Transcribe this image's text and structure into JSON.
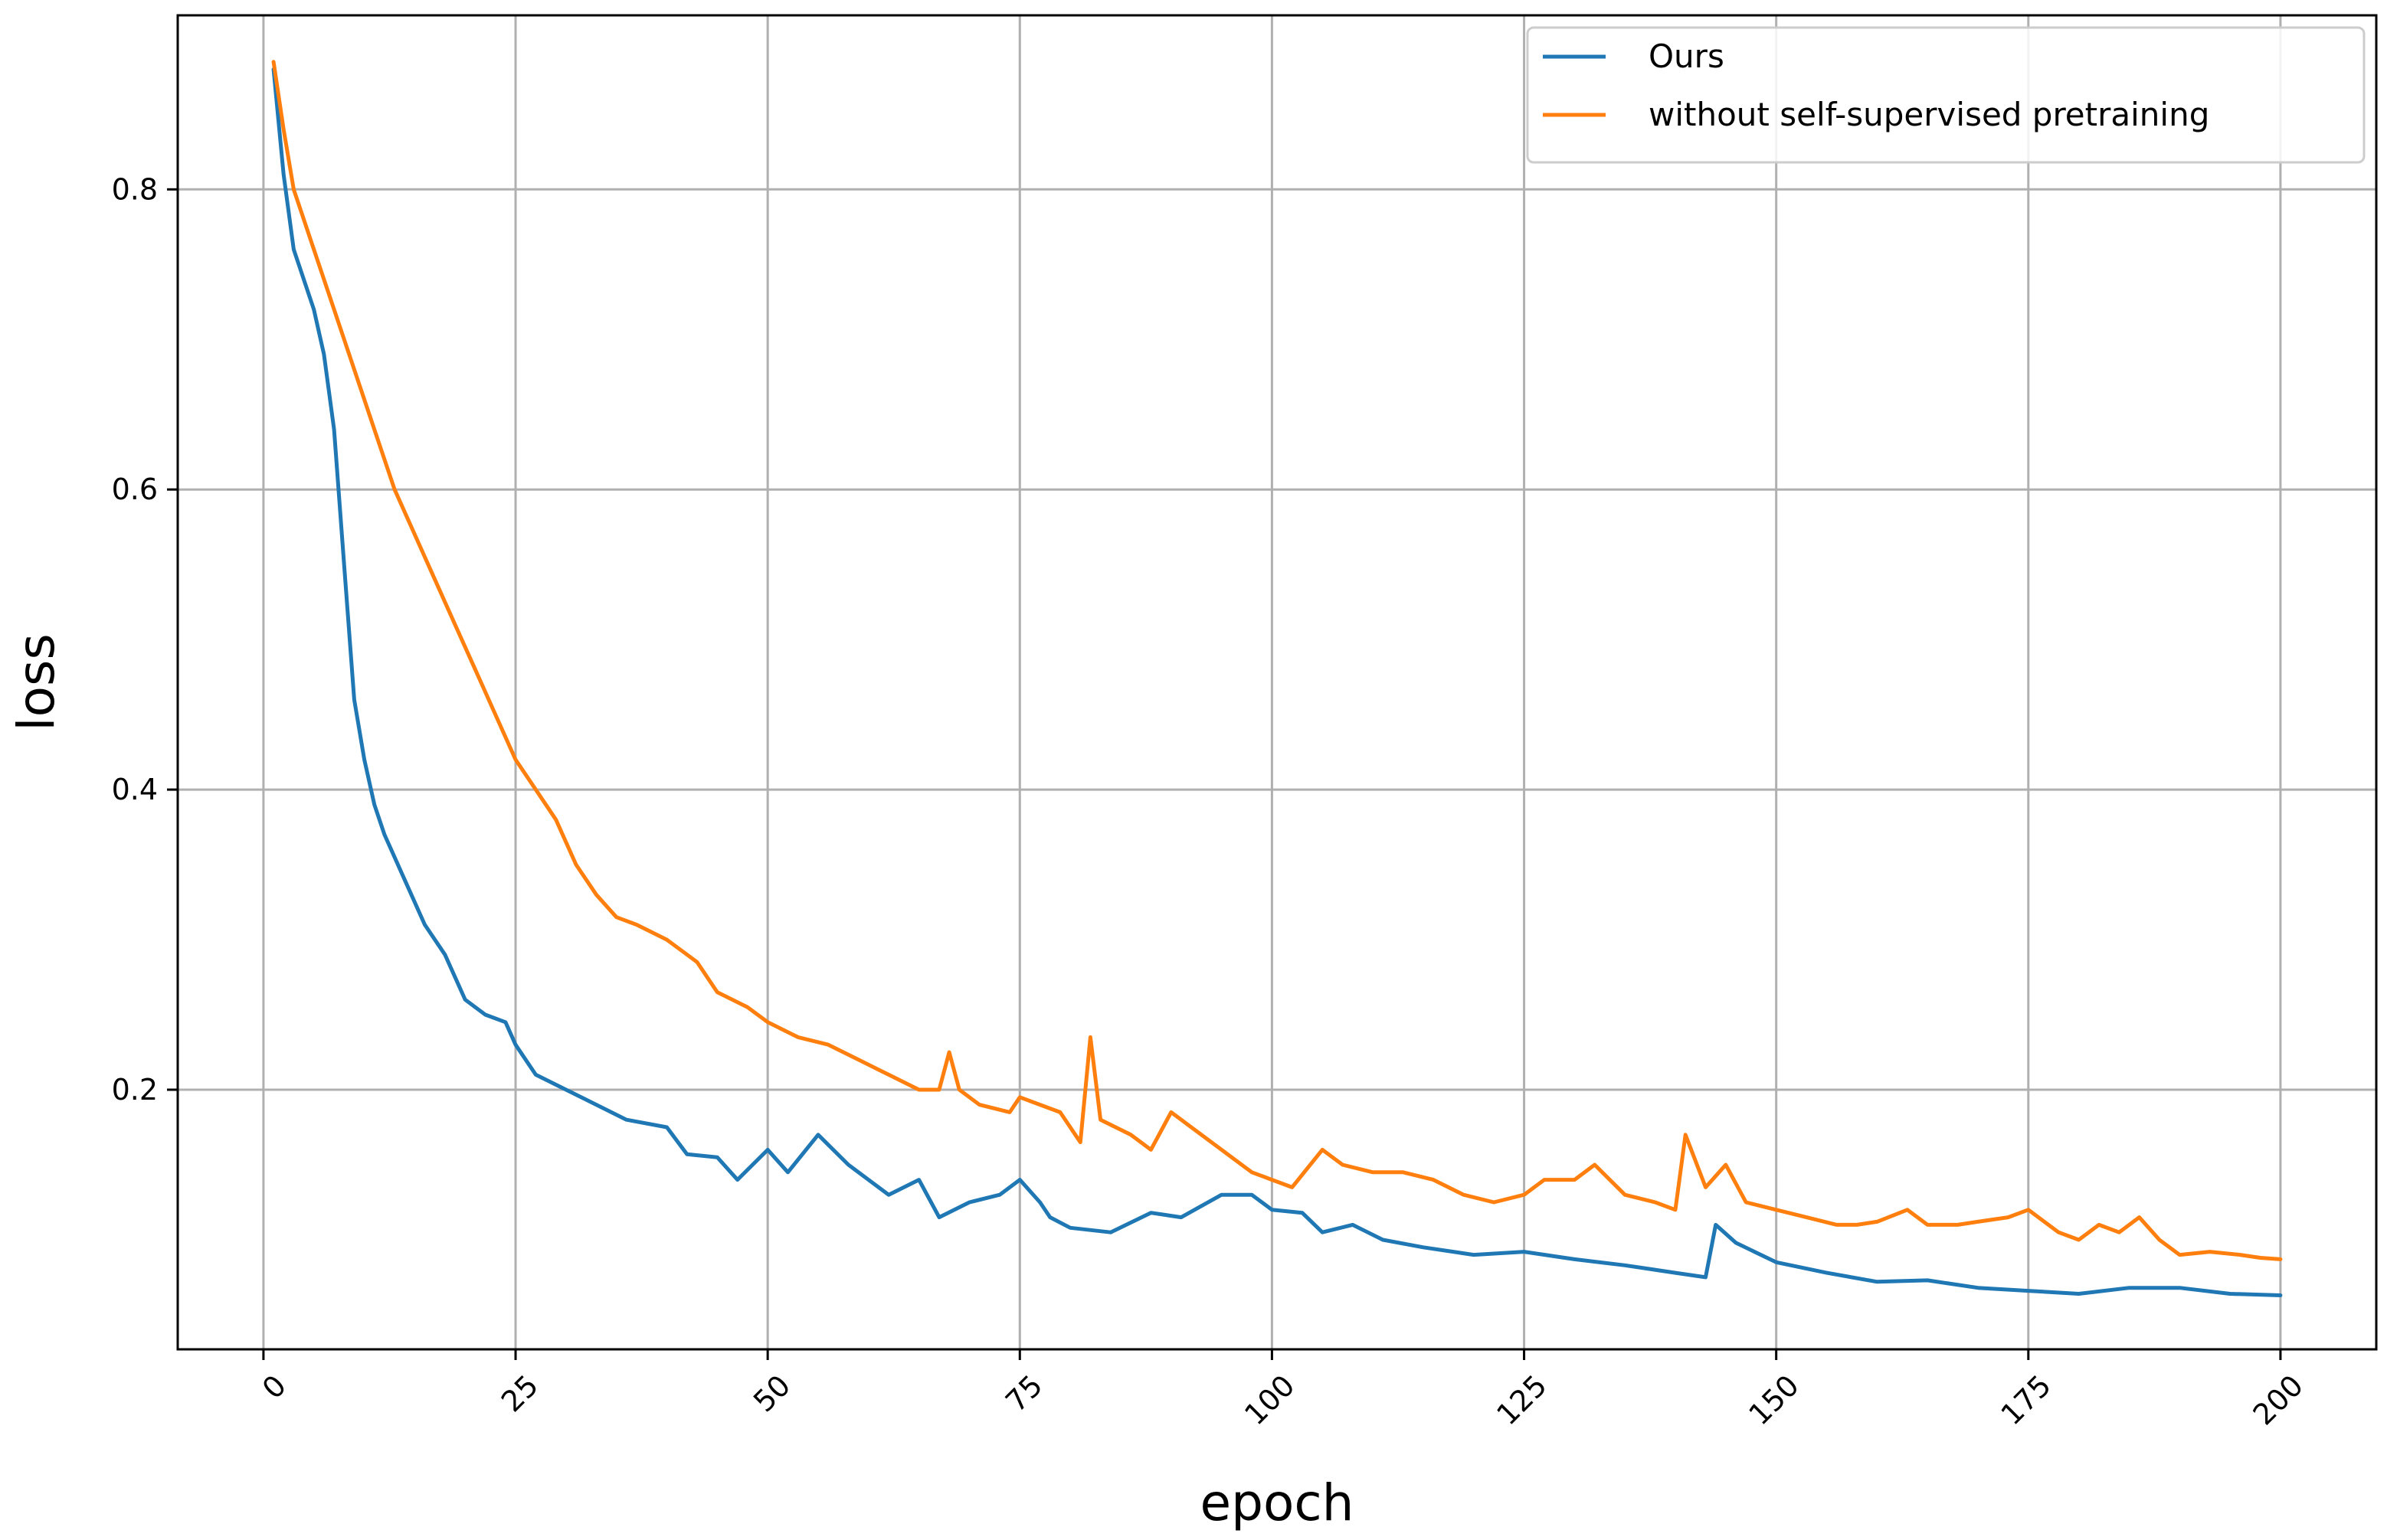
{
  "chart_data": {
    "type": "line",
    "title": "",
    "xlabel": "epoch",
    "ylabel": "loss",
    "xlim": [
      -8.5,
      209.5
    ],
    "ylim": [
      0.027,
      0.916
    ],
    "xticks": [
      0,
      25,
      50,
      75,
      100,
      125,
      150,
      175,
      200
    ],
    "yticks": [
      0.2,
      0.4,
      0.6,
      0.8
    ],
    "ytick_labels": [
      "0.2",
      "0.4",
      "0.6",
      "0.8"
    ],
    "xtick_rotation": 45,
    "grid": true,
    "legend_position": "upper right",
    "series": [
      {
        "name": "Ours",
        "color": "#1f77b4",
        "keypoints": [
          [
            1,
            0.88
          ],
          [
            2,
            0.81
          ],
          [
            3,
            0.76
          ],
          [
            5,
            0.72
          ],
          [
            6,
            0.69
          ],
          [
            7,
            0.64
          ],
          [
            8,
            0.55
          ],
          [
            9,
            0.46
          ],
          [
            10,
            0.42
          ],
          [
            11,
            0.39
          ],
          [
            12,
            0.37
          ],
          [
            14,
            0.34
          ],
          [
            16,
            0.31
          ],
          [
            18,
            0.29
          ],
          [
            20,
            0.26
          ],
          [
            22,
            0.25
          ],
          [
            24,
            0.245
          ],
          [
            25,
            0.23
          ],
          [
            27,
            0.21
          ],
          [
            30,
            0.2
          ],
          [
            33,
            0.19
          ],
          [
            36,
            0.18
          ],
          [
            40,
            0.175
          ],
          [
            42,
            0.157
          ],
          [
            45,
            0.155
          ],
          [
            47,
            0.14
          ],
          [
            50,
            0.16
          ],
          [
            52,
            0.145
          ],
          [
            55,
            0.17
          ],
          [
            58,
            0.15
          ],
          [
            62,
            0.13
          ],
          [
            65,
            0.14
          ],
          [
            67,
            0.115
          ],
          [
            70,
            0.125
          ],
          [
            73,
            0.13
          ],
          [
            75,
            0.14
          ],
          [
            77,
            0.125
          ],
          [
            78,
            0.115
          ],
          [
            80,
            0.108
          ],
          [
            84,
            0.105
          ],
          [
            88,
            0.118
          ],
          [
            91,
            0.115
          ],
          [
            95,
            0.13
          ],
          [
            98,
            0.13
          ],
          [
            100,
            0.12
          ],
          [
            103,
            0.118
          ],
          [
            105,
            0.105
          ],
          [
            108,
            0.11
          ],
          [
            111,
            0.1
          ],
          [
            115,
            0.095
          ],
          [
            120,
            0.09
          ],
          [
            125,
            0.092
          ],
          [
            130,
            0.087
          ],
          [
            135,
            0.083
          ],
          [
            140,
            0.078
          ],
          [
            143,
            0.075
          ],
          [
            144,
            0.11
          ],
          [
            146,
            0.098
          ],
          [
            150,
            0.085
          ],
          [
            155,
            0.078
          ],
          [
            160,
            0.072
          ],
          [
            165,
            0.073
          ],
          [
            170,
            0.068
          ],
          [
            175,
            0.066
          ],
          [
            180,
            0.064
          ],
          [
            185,
            0.068
          ],
          [
            190,
            0.068
          ],
          [
            195,
            0.064
          ],
          [
            200,
            0.063
          ]
        ]
      },
      {
        "name": "without self-supervised pretraining",
        "color": "#ff7f0e",
        "keypoints": [
          [
            1,
            0.885
          ],
          [
            2,
            0.84
          ],
          [
            3,
            0.8
          ],
          [
            5,
            0.76
          ],
          [
            7,
            0.72
          ],
          [
            9,
            0.68
          ],
          [
            11,
            0.64
          ],
          [
            13,
            0.6
          ],
          [
            15,
            0.57
          ],
          [
            17,
            0.54
          ],
          [
            19,
            0.51
          ],
          [
            21,
            0.48
          ],
          [
            23,
            0.45
          ],
          [
            25,
            0.42
          ],
          [
            27,
            0.4
          ],
          [
            29,
            0.38
          ],
          [
            31,
            0.35
          ],
          [
            33,
            0.33
          ],
          [
            35,
            0.315
          ],
          [
            37,
            0.31
          ],
          [
            40,
            0.3
          ],
          [
            43,
            0.285
          ],
          [
            45,
            0.265
          ],
          [
            48,
            0.255
          ],
          [
            50,
            0.245
          ],
          [
            53,
            0.235
          ],
          [
            56,
            0.23
          ],
          [
            59,
            0.22
          ],
          [
            62,
            0.21
          ],
          [
            65,
            0.2
          ],
          [
            67,
            0.2
          ],
          [
            68,
            0.225
          ],
          [
            69,
            0.2
          ],
          [
            71,
            0.19
          ],
          [
            74,
            0.185
          ],
          [
            75,
            0.195
          ],
          [
            77,
            0.19
          ],
          [
            79,
            0.185
          ],
          [
            81,
            0.165
          ],
          [
            82,
            0.235
          ],
          [
            83,
            0.18
          ],
          [
            86,
            0.17
          ],
          [
            88,
            0.16
          ],
          [
            90,
            0.185
          ],
          [
            92,
            0.175
          ],
          [
            95,
            0.16
          ],
          [
            98,
            0.145
          ],
          [
            100,
            0.14
          ],
          [
            102,
            0.135
          ],
          [
            105,
            0.16
          ],
          [
            107,
            0.15
          ],
          [
            110,
            0.145
          ],
          [
            113,
            0.145
          ],
          [
            116,
            0.14
          ],
          [
            119,
            0.13
          ],
          [
            122,
            0.125
          ],
          [
            125,
            0.13
          ],
          [
            127,
            0.14
          ],
          [
            130,
            0.14
          ],
          [
            132,
            0.15
          ],
          [
            135,
            0.13
          ],
          [
            138,
            0.125
          ],
          [
            140,
            0.12
          ],
          [
            141,
            0.17
          ],
          [
            143,
            0.135
          ],
          [
            145,
            0.15
          ],
          [
            147,
            0.125
          ],
          [
            150,
            0.12
          ],
          [
            153,
            0.115
          ],
          [
            156,
            0.11
          ],
          [
            158,
            0.11
          ],
          [
            160,
            0.112
          ],
          [
            163,
            0.12
          ],
          [
            165,
            0.11
          ],
          [
            168,
            0.11
          ],
          [
            170,
            0.112
          ],
          [
            173,
            0.115
          ],
          [
            175,
            0.12
          ],
          [
            178,
            0.105
          ],
          [
            180,
            0.1
          ],
          [
            182,
            0.11
          ],
          [
            184,
            0.105
          ],
          [
            186,
            0.115
          ],
          [
            188,
            0.1
          ],
          [
            190,
            0.09
          ],
          [
            193,
            0.092
          ],
          [
            196,
            0.09
          ],
          [
            198,
            0.088
          ],
          [
            200,
            0.087
          ]
        ]
      }
    ]
  }
}
